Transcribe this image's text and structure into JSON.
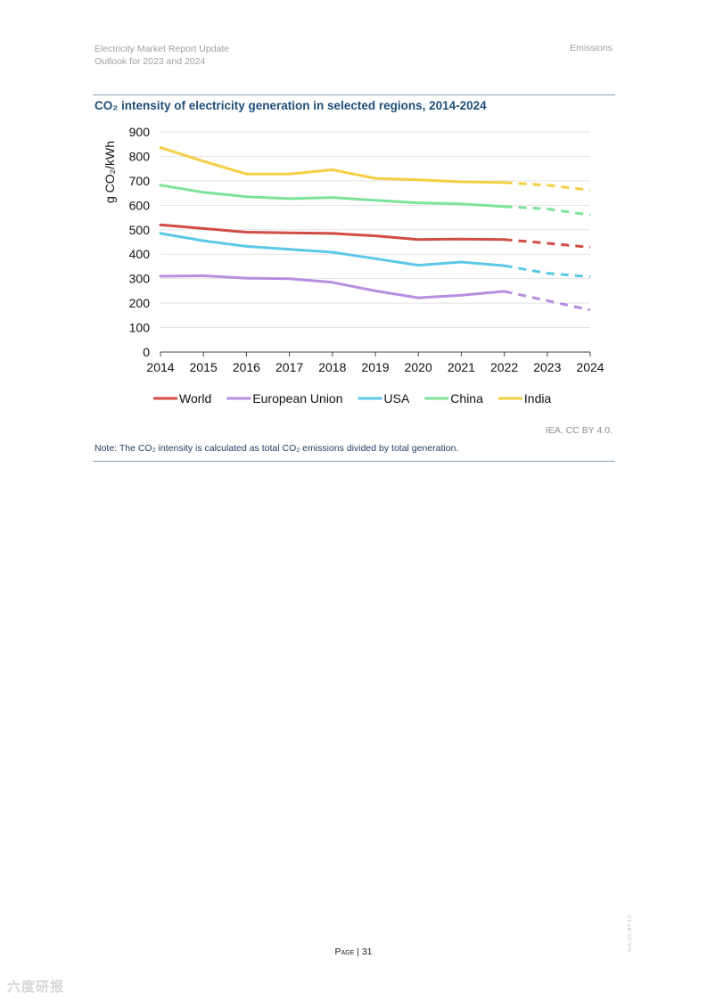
{
  "header": {
    "report_title": "Electricity Market Report Update",
    "report_subtitle": "Outlook for 2023 and 2024",
    "section": "Emissions"
  },
  "figure": {
    "title": "CO₂ intensity of electricity generation in selected regions, 2014-2024",
    "source": "IEA. CC BY 4.0.",
    "note": "Note: The CO₂ intensity is calculated as total CO₂ emissions divided by total generation."
  },
  "footer": {
    "page_prefix": "Page",
    "page_number": "31",
    "side_mark": "IEA. CC BY 4.0.",
    "watermark": "六度研报"
  },
  "chart_data": {
    "type": "line",
    "title": "CO₂ intensity of electricity generation in selected regions, 2014-2024",
    "xlabel": "",
    "ylabel": "g CO₂/kWh",
    "x": [
      2014,
      2015,
      2016,
      2017,
      2018,
      2019,
      2020,
      2021,
      2022,
      2023,
      2024
    ],
    "ylim": [
      0,
      900
    ],
    "yticks": [
      0,
      100,
      200,
      300,
      400,
      500,
      600,
      700,
      800,
      900
    ],
    "forecast_from": 2022,
    "grid": true,
    "legend": "bottom",
    "series": [
      {
        "name": "World",
        "color": "#d24b45",
        "values": [
          520,
          505,
          490,
          487,
          485,
          475,
          460,
          462,
          460,
          445,
          428
        ]
      },
      {
        "name": "European Union",
        "color": "#b88ee0",
        "values": [
          310,
          312,
          302,
          300,
          285,
          250,
          222,
          232,
          248,
          210,
          172
        ]
      },
      {
        "name": "USA",
        "color": "#5bc8e6",
        "values": [
          485,
          455,
          432,
          420,
          408,
          382,
          355,
          368,
          353,
          322,
          308
        ]
      },
      {
        "name": "China",
        "color": "#7de29a",
        "values": [
          682,
          653,
          635,
          627,
          632,
          620,
          610,
          606,
          595,
          585,
          560
        ]
      },
      {
        "name": "India",
        "color": "#f5cf45",
        "values": [
          836,
          780,
          728,
          728,
          745,
          710,
          704,
          696,
          693,
          682,
          662
        ]
      }
    ]
  }
}
